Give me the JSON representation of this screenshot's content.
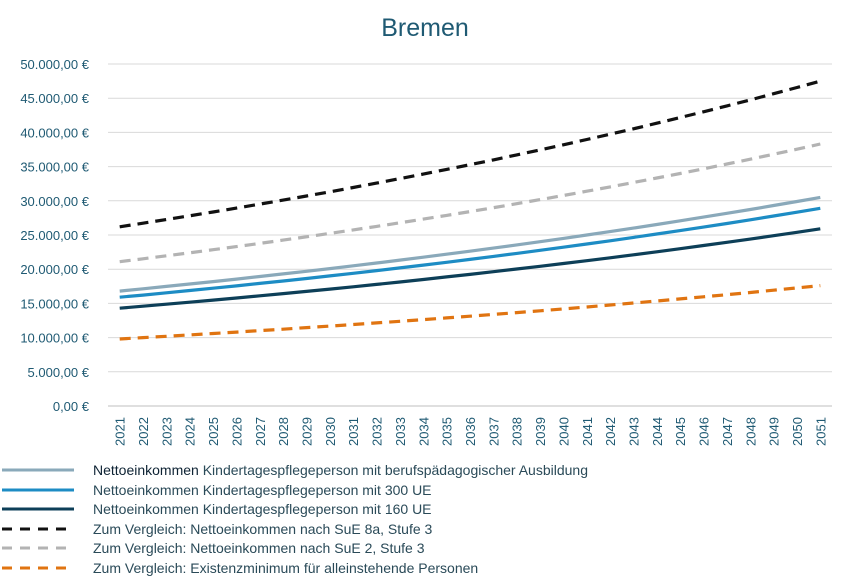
{
  "chart_data": {
    "type": "line",
    "title": "Bremen",
    "xlabel": "",
    "ylabel": "",
    "ylim": [
      0,
      50000
    ],
    "y_ticks": [
      "0,00 €",
      "5.000,00 €",
      "10.000,00 €",
      "15.000,00 €",
      "20.000,00 €",
      "25.000,00 €",
      "30.000,00 €",
      "35.000,00 €",
      "40.000,00 €",
      "45.000,00 €",
      "50.000,00 €"
    ],
    "y_tick_values": [
      0,
      5000,
      10000,
      15000,
      20000,
      25000,
      30000,
      35000,
      40000,
      45000,
      50000
    ],
    "grid": true,
    "legend_position": "bottom",
    "categories": [
      "2021",
      "2022",
      "2023",
      "2024",
      "2025",
      "2026",
      "2027",
      "2028",
      "2029",
      "2030",
      "2031",
      "2032",
      "2033",
      "2034",
      "2035",
      "2036",
      "2037",
      "2038",
      "2039",
      "2040",
      "2041",
      "2042",
      "2043",
      "2044",
      "2045",
      "2046",
      "2047",
      "2048",
      "2049",
      "2050",
      "2051"
    ],
    "series": [
      {
        "name_bold": "Nettoeinkommen",
        "name": "Kindertagespflegeperson mit berufspädagogischer Ausbildung",
        "color": "#8aa9ba",
        "dash": "solid",
        "start": 16800,
        "end": 30500
      },
      {
        "name_bold": "",
        "name": "Nettoeinkommen Kindertagespflegeperson mit 300 UE",
        "color": "#1d8cc4",
        "dash": "solid",
        "start": 15900,
        "end": 28900
      },
      {
        "name_bold": "",
        "name": "Nettoeinkommen Kindertagespflegeperson mit 160 UE",
        "color": "#0d3f58",
        "dash": "solid",
        "start": 14300,
        "end": 25900
      },
      {
        "name_bold": "",
        "name": "Zum Vergleich: Nettoeinkommen nach SuE 8a, Stufe 3",
        "color": "#111111",
        "dash": "dashed",
        "start": 26200,
        "end": 47500
      },
      {
        "name_bold": "",
        "name": "Zum Vergleich: Nettoeinkommen nach SuE 2, Stufe 3",
        "color": "#b3b3b3",
        "dash": "dashed",
        "start": 21100,
        "end": 38300
      },
      {
        "name_bold": "",
        "name": "Zum Vergleich: Existenzminimum für alleinstehende Personen",
        "color": "#e07411",
        "dash": "dashed",
        "start": 9800,
        "end": 17600
      }
    ]
  }
}
